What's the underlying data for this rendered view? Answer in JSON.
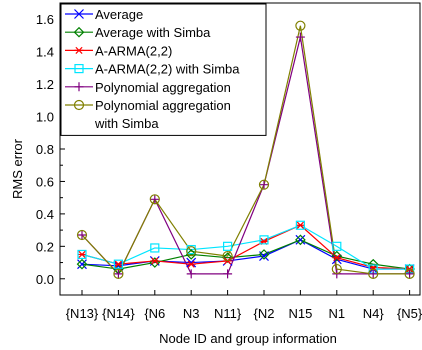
{
  "chart_data": {
    "type": "line",
    "xlabel": "Node ID and group information",
    "ylabel": "RMS error",
    "ylim": [
      -0.1,
      1.7
    ],
    "yticks": [
      0.0,
      0.2,
      0.4,
      0.6,
      0.8,
      1.0,
      1.2,
      1.4,
      1.6
    ],
    "categories": [
      "{N13}",
      "{N14}",
      "{N6",
      "N3",
      "N11}",
      "{N2",
      "N15",
      "N1",
      "N4}",
      "{N5}"
    ],
    "grid": false,
    "legend_position": "top-left",
    "series": [
      {
        "name": "Average",
        "color": "#0000ff",
        "marker": "x",
        "values": [
          0.09,
          0.08,
          0.11,
          0.1,
          0.11,
          0.14,
          0.24,
          0.12,
          0.06,
          0.06
        ]
      },
      {
        "name": "Average with Simba",
        "color": "#008000",
        "marker": "diamond",
        "values": [
          0.09,
          0.06,
          0.1,
          0.15,
          0.13,
          0.15,
          0.24,
          0.14,
          0.09,
          0.06
        ]
      },
      {
        "name": "A-ARMA(2,2)",
        "color": "#ff0000",
        "marker": "asterisk",
        "values": [
          0.15,
          0.09,
          0.11,
          0.09,
          0.11,
          0.23,
          0.33,
          0.13,
          0.07,
          0.06
        ]
      },
      {
        "name": "A-ARMA(2,2) with Simba",
        "color": "#00e5ff",
        "marker": "square",
        "values": [
          0.15,
          0.09,
          0.19,
          0.18,
          0.2,
          0.24,
          0.33,
          0.2,
          0.06,
          0.06
        ]
      },
      {
        "name": "Polynomial aggregation",
        "color": "#800080",
        "marker": "plus",
        "values": [
          0.27,
          0.03,
          0.49,
          0.03,
          0.03,
          0.58,
          1.49,
          0.03,
          0.03,
          0.03
        ]
      },
      {
        "name": "Polynomial aggregation with Simba",
        "label_lines": [
          "Polynomial aggregation",
          "with Simba"
        ],
        "color": "#808000",
        "marker": "circle",
        "values": [
          0.27,
          0.03,
          0.49,
          0.17,
          0.14,
          0.58,
          1.56,
          0.06,
          0.03,
          0.03
        ]
      }
    ]
  }
}
